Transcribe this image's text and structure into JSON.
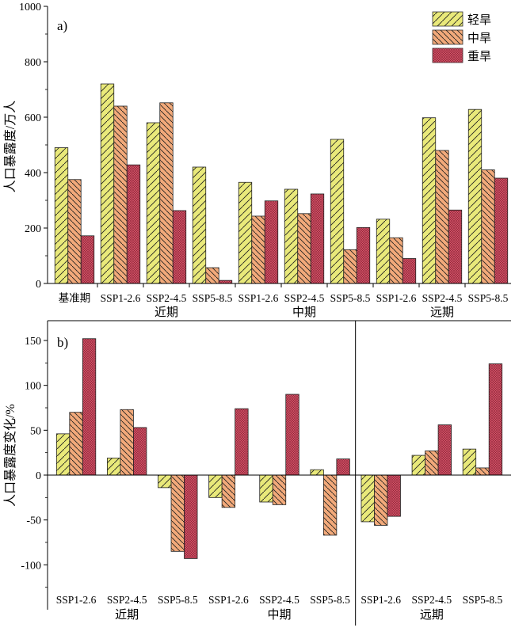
{
  "colors": {
    "light": "#e9e97a",
    "moderate": "#f2a97a",
    "severe": "#d6566c"
  },
  "legend": [
    "轻旱",
    "中旱",
    "重旱"
  ],
  "chart_data": [
    {
      "type": "bar",
      "panel_label": "a)",
      "ylabel": "人口暴露度/万人",
      "ylim": [
        0,
        1000
      ],
      "yticks": [
        "0",
        "200",
        "400",
        "600",
        "800",
        "1000"
      ],
      "categories": [
        "基准期",
        "SSP1-2.6",
        "SSP2-4.5",
        "SSP5-8.5",
        "SSP1-2.6",
        "SSP2-4.5",
        "SSP5-8.5",
        "SSP1-2.6",
        "SSP2-4.5",
        "SSP5-8.5"
      ],
      "groups": [
        {
          "label": "近期",
          "start": 1,
          "end": 3
        },
        {
          "label": "中期",
          "start": 4,
          "end": 6
        },
        {
          "label": "远期",
          "start": 7,
          "end": 9
        }
      ],
      "series": [
        {
          "name": "轻旱",
          "values": [
            490,
            720,
            580,
            420,
            365,
            340,
            520,
            232,
            598,
            628
          ]
        },
        {
          "name": "中旱",
          "values": [
            375,
            640,
            652,
            57,
            243,
            252,
            122,
            165,
            480,
            410
          ]
        },
        {
          "name": "重旱",
          "values": [
            172,
            428,
            263,
            11,
            298,
            323,
            202,
            90,
            265,
            380
          ]
        }
      ]
    },
    {
      "type": "bar",
      "panel_label": "b)",
      "ylabel": "人口暴露度变化/%",
      "ylim": [
        -135,
        170
      ],
      "yticks": [
        "-100",
        "-50",
        "0",
        "50",
        "100",
        "150"
      ],
      "categories": [
        "SSP1-2.6",
        "SSP2-4.5",
        "SSP5-8.5",
        "SSP1-2.6",
        "SSP2-4.5",
        "SSP5-8.5",
        "SSP1-2.6",
        "SSP2-4.5",
        "SSP5-8.5"
      ],
      "groups": [
        {
          "label": "近期",
          "start": 0,
          "end": 2
        },
        {
          "label": "中期",
          "start": 3,
          "end": 5
        },
        {
          "label": "远期",
          "start": 6,
          "end": 8
        }
      ],
      "series": [
        {
          "name": "轻旱",
          "values": [
            46,
            19,
            -14,
            -25,
            -30,
            6,
            -52,
            22,
            29
          ]
        },
        {
          "name": "中旱",
          "values": [
            70,
            73,
            -85,
            -36,
            -33,
            -67,
            -56,
            27,
            8
          ]
        },
        {
          "name": "重旱",
          "values": [
            152,
            53,
            -93,
            74,
            90,
            18,
            -46,
            56,
            124
          ]
        }
      ]
    }
  ]
}
